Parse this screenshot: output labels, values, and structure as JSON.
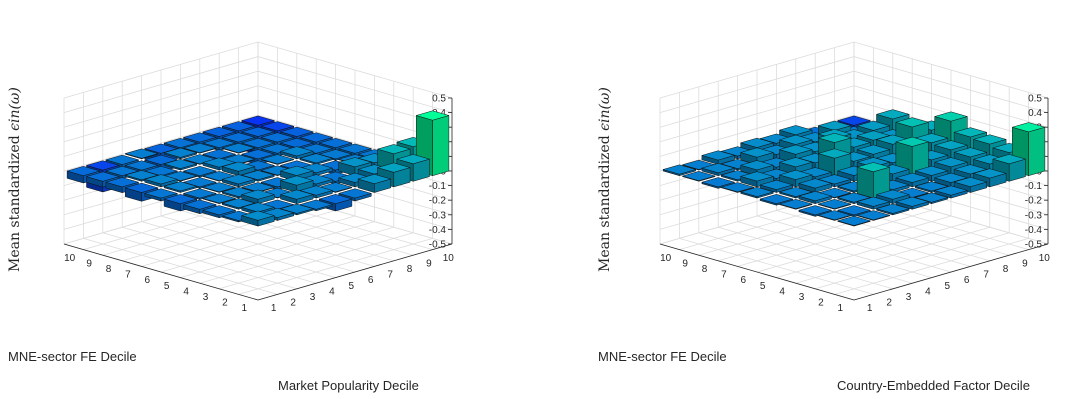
{
  "chart_data": [
    {
      "type": "bar3d",
      "zlabel_prefix": "Mean standardized ",
      "zlabel_math": "ϵin(ω)",
      "x_label": "MNE-sector FE Decile",
      "y_label": "Market Popularity Decile",
      "x_ticks": [
        "1",
        "2",
        "3",
        "4",
        "5",
        "6",
        "7",
        "8",
        "9",
        "10"
      ],
      "y_ticks": [
        "1",
        "2",
        "3",
        "4",
        "5",
        "6",
        "7",
        "8",
        "9",
        "10"
      ],
      "z_ticks": [
        "-0.5",
        "-0.4",
        "-0.3",
        "-0.2",
        "-0.1",
        "0",
        "0.1",
        "0.2",
        "0.3",
        "0.4",
        "0.5"
      ],
      "zlim": [
        -0.5,
        0.5
      ],
      "grid": true,
      "colormap": [
        "#0a14ff",
        "#00ff99"
      ],
      "z_values": [
        [
          0.04,
          0.02,
          0.01,
          -0.01,
          -0.05,
          -0.02,
          0.06,
          0.1,
          0.12,
          0.38
        ],
        [
          -0.01,
          0.02,
          -0.02,
          0.03,
          0.02,
          0.0,
          0.03,
          0.05,
          0.15,
          0.16
        ],
        [
          -0.02,
          0.01,
          0.03,
          0.0,
          0.05,
          0.02,
          -0.02,
          0.06,
          0.05,
          0.04
        ],
        [
          -0.03,
          0.0,
          0.01,
          0.0,
          -0.02,
          0.04,
          0.02,
          -0.03,
          0.0,
          -0.02
        ],
        [
          -0.05,
          -0.01,
          0.0,
          0.02,
          0.01,
          0.0,
          -0.03,
          0.01,
          -0.01,
          -0.02
        ],
        [
          -0.02,
          0.01,
          -0.01,
          0.0,
          0.03,
          -0.02,
          0.0,
          0.02,
          -0.02,
          -0.04
        ],
        [
          -0.06,
          0.02,
          0.0,
          -0.01,
          0.02,
          0.0,
          -0.04,
          -0.02,
          -0.05,
          -0.05
        ],
        [
          -0.04,
          0.01,
          -0.02,
          0.01,
          0.0,
          -0.03,
          0.0,
          -0.03,
          -0.04,
          -0.08
        ],
        [
          -0.04,
          -0.02,
          -0.02,
          -0.05,
          0.01,
          0.0,
          -0.02,
          -0.04,
          -0.06,
          -0.15
        ],
        [
          -0.05,
          -0.15,
          -0.02,
          0.0,
          -0.07,
          -0.03,
          -0.05,
          -0.07,
          -0.08,
          -0.2
        ]
      ]
    },
    {
      "type": "bar3d",
      "zlabel_prefix": "Mean standardized ",
      "zlabel_math": "ϵin(ω)",
      "x_label": "MNE-sector FE Decile",
      "y_label": "Country-Embedded Factor Decile",
      "x_ticks": [
        "1",
        "2",
        "3",
        "4",
        "5",
        "6",
        "7",
        "8",
        "9",
        "10"
      ],
      "y_ticks": [
        "1",
        "2",
        "3",
        "4",
        "5",
        "6",
        "7",
        "8",
        "9",
        "10"
      ],
      "z_ticks": [
        "-0.5",
        "-0.4",
        "-0.3",
        "-0.2",
        "-0.1",
        "0",
        "0.1",
        "0.2",
        "0.3",
        "0.4",
        "0.5"
      ],
      "zlim": [
        -0.5,
        0.5
      ],
      "grid": true,
      "colormap": [
        "#0a14ff",
        "#00ff99"
      ],
      "z_values": [
        [
          0.0,
          0.0,
          0.01,
          0.02,
          0.01,
          0.02,
          0.04,
          0.06,
          0.12,
          0.3
        ],
        [
          0.0,
          -0.01,
          0.02,
          0.03,
          0.0,
          0.01,
          0.03,
          0.05,
          0.08,
          0.12
        ],
        [
          -0.01,
          0.0,
          0.01,
          0.18,
          0.02,
          0.03,
          0.04,
          0.06,
          0.09,
          0.14
        ],
        [
          0.0,
          0.02,
          0.0,
          0.01,
          0.03,
          0.05,
          0.2,
          0.07,
          0.1,
          0.15
        ],
        [
          -0.01,
          0.01,
          0.03,
          0.02,
          0.04,
          0.06,
          0.05,
          0.08,
          0.11,
          0.22
        ],
        [
          0.01,
          0.02,
          0.05,
          0.03,
          0.12,
          0.06,
          0.07,
          0.1,
          0.18,
          0.12
        ],
        [
          0.0,
          0.04,
          0.02,
          0.06,
          0.05,
          0.15,
          0.08,
          0.09,
          0.06,
          0.1
        ],
        [
          -0.01,
          0.01,
          0.04,
          0.02,
          0.07,
          0.05,
          0.1,
          0.06,
          0.08,
          0.12
        ],
        [
          0.0,
          0.02,
          0.01,
          0.05,
          0.03,
          0.06,
          0.04,
          0.08,
          0.0,
          -0.02
        ],
        [
          0.01,
          0.0,
          0.03,
          0.02,
          0.04,
          0.03,
          0.05,
          -0.04,
          -0.08,
          -0.15
        ]
      ]
    }
  ]
}
